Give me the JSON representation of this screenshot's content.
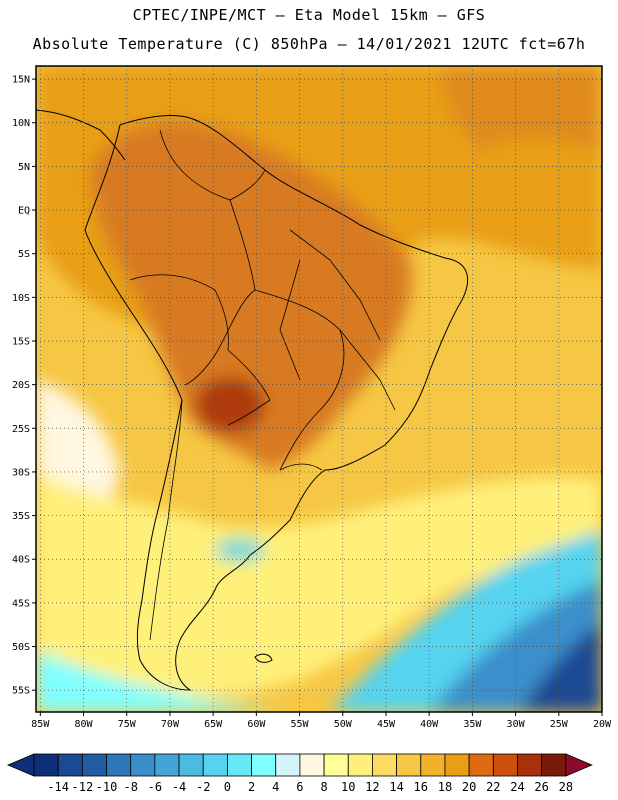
{
  "title": {
    "line1": "CPTEC/INPE/MCT –  Eta Model 15km – GFS",
    "line2": "Absolute Temperature (C) 850hPa – 14/01/2021 12UTC fct=67h"
  },
  "map": {
    "lat_labels": [
      "15N",
      "10N",
      "5N",
      "EQ",
      "5S",
      "10S",
      "15S",
      "20S",
      "25S",
      "30S",
      "35S",
      "40S",
      "45S",
      "50S",
      "55S"
    ],
    "lat_values": [
      15,
      10,
      5,
      0,
      -5,
      -10,
      -15,
      -20,
      -25,
      -30,
      -35,
      -40,
      -45,
      -50,
      -55
    ],
    "lon_labels": [
      "85W",
      "80W",
      "75W",
      "70W",
      "65W",
      "60W",
      "55W",
      "50W",
      "45W",
      "40W",
      "35W",
      "30W",
      "25W",
      "20W"
    ],
    "lon_values": [
      -85,
      -80,
      -75,
      -70,
      -65,
      -60,
      -55,
      -50,
      -45,
      -40,
      -35,
      -30,
      -25,
      -20
    ],
    "extent": {
      "lon_min": -85.5,
      "lon_max": -20,
      "lat_min": -57.5,
      "lat_max": 16.5
    },
    "grid": true,
    "gridline_color": "#444444"
  },
  "colorbar": {
    "labels": [
      "-14",
      "-12",
      "-10",
      "-8",
      "-6",
      "-4",
      "-2",
      "0",
      "2",
      "4",
      "6",
      "8",
      "10",
      "12",
      "14",
      "16",
      "18",
      "20",
      "22",
      "24",
      "26",
      "28"
    ],
    "colors": [
      "#0f2f7a",
      "#1b4994",
      "#215da2",
      "#2e78b8",
      "#3a8fca",
      "#45a3d6",
      "#4bbbe4",
      "#55d3ef",
      "#66e9f7",
      "#80ffff",
      "#d4f4fb",
      "#fff7e0",
      "#ffff9a",
      "#fff07a",
      "#fbdc60",
      "#f6c744",
      "#f1b12a",
      "#e89f14",
      "#e06a12",
      "#cc4f0d",
      "#a8300a",
      "#7a1a0a",
      "#8c0a2a"
    ]
  },
  "field": {
    "colors": {
      "deep_blue": "#1b4994",
      "mid_blue": "#3a8fca",
      "light_blue": "#55d3ef",
      "cyan": "#80ffff",
      "pale": "#fff7e0",
      "yellow": "#fff07a",
      "gold": "#f6c744",
      "orange_light": "#f1b12a",
      "orange": "#e89f14",
      "dark_orange": "#d87a22",
      "red_brown": "#a8300a",
      "land": "#e08a30"
    }
  }
}
